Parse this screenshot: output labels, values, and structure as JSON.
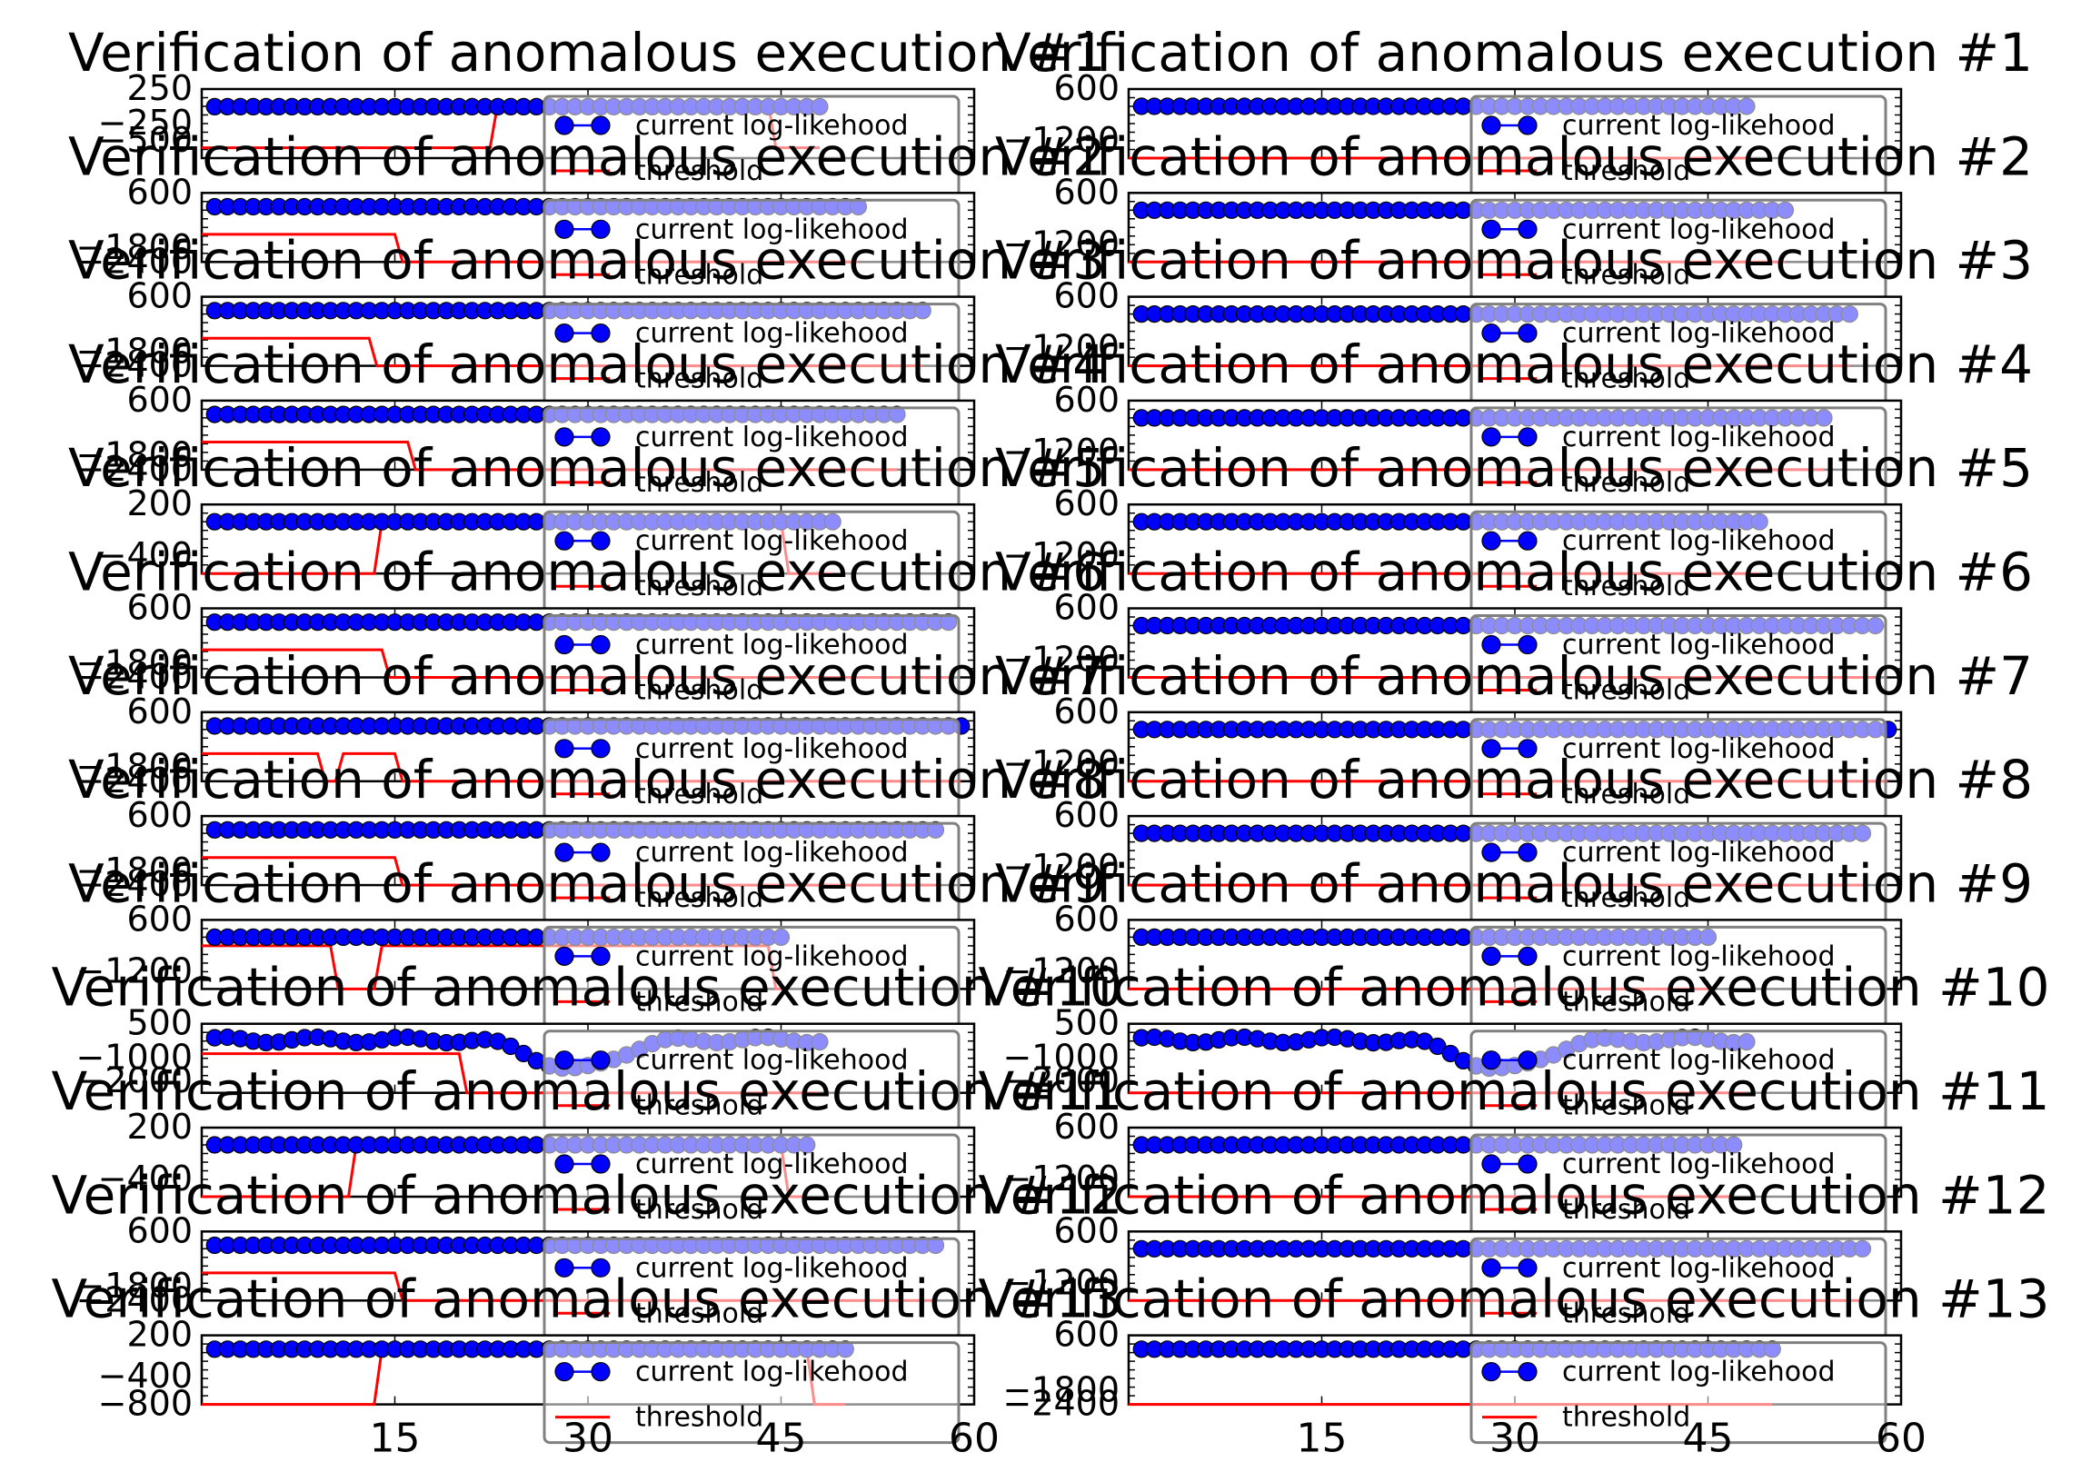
{
  "figure": {
    "legend_items": [
      "current log-likehood",
      "threshold"
    ],
    "x_ticks": [
      15,
      30,
      45,
      60
    ],
    "x_range": [
      0,
      60
    ],
    "legend_placement": "lower-right, overlapping",
    "colors": {
      "log_likelihood": "#0000ff",
      "threshold": "#ff0000",
      "axes": "#000000"
    }
  },
  "chart_data": [
    {
      "title": "Verification of anomalous execution #1",
      "type": "line",
      "xlim": [
        0,
        60
      ],
      "ylim": [
        -750,
        250
      ],
      "yticks": [
        250,
        -250,
        -500
      ],
      "n_points": 48,
      "loglik": -5,
      "threshold": {
        "base": -600,
        "high": 45,
        "segments": [
          [
            23,
            44
          ]
        ]
      }
    },
    {
      "title": "Verification of anomalous execution #1",
      "type": "line",
      "xlim": [
        0,
        60
      ],
      "ylim": [
        -1800,
        600
      ],
      "yticks": [
        600,
        -1200
      ],
      "n_points": 48,
      "loglik": 0,
      "threshold": {
        "base": -1800
      }
    },
    {
      "title": "Verification of anomalous execution #2",
      "type": "line",
      "xlim": [
        0,
        60
      ],
      "ylim": [
        -2400,
        600
      ],
      "yticks": [
        600,
        -1800,
        -2400
      ],
      "n_points": 51,
      "loglik": 0,
      "threshold": {
        "base": -2400,
        "high": -1200,
        "segments": [
          [
            0,
            15
          ]
        ]
      }
    },
    {
      "title": "Verification of anomalous execution #2",
      "type": "line",
      "xlim": [
        0,
        60
      ],
      "ylim": [
        -1800,
        600
      ],
      "yticks": [
        600,
        -1200
      ],
      "n_points": 51,
      "loglik": 0,
      "threshold": {
        "base": -1800
      }
    },
    {
      "title": "Verification of anomalous execution #3",
      "type": "line",
      "xlim": [
        0,
        60
      ],
      "ylim": [
        -2400,
        600
      ],
      "yticks": [
        600,
        -1800,
        -2400
      ],
      "n_points": 56,
      "loglik": 0,
      "threshold": {
        "base": -2400,
        "high": -1200,
        "segments": [
          [
            0,
            13
          ]
        ]
      }
    },
    {
      "title": "Verification of anomalous execution #3",
      "type": "line",
      "xlim": [
        0,
        60
      ],
      "ylim": [
        -1800,
        600
      ],
      "yticks": [
        600,
        -1200
      ],
      "n_points": 56,
      "loglik": 0,
      "threshold": {
        "base": -1800
      }
    },
    {
      "title": "Verification of anomalous execution #4",
      "type": "line",
      "xlim": [
        0,
        60
      ],
      "ylim": [
        -2400,
        600
      ],
      "yticks": [
        600,
        -1800,
        -2400
      ],
      "n_points": 54,
      "loglik": 0,
      "threshold": {
        "base": -2400,
        "high": -1200,
        "segments": [
          [
            0,
            16
          ]
        ]
      }
    },
    {
      "title": "Verification of anomalous execution #4",
      "type": "line",
      "xlim": [
        0,
        60
      ],
      "ylim": [
        -1800,
        600
      ],
      "yticks": [
        600,
        -1200
      ],
      "n_points": 54,
      "loglik": 0,
      "threshold": {
        "base": -1800
      }
    },
    {
      "title": "Verification of anomalous execution #5",
      "type": "line",
      "xlim": [
        0,
        60
      ],
      "ylim": [
        -600,
        200
      ],
      "yticks": [
        200,
        -400
      ],
      "n_points": 49,
      "loglik": 0,
      "threshold": {
        "base": -600,
        "high": 0,
        "segments": [
          [
            14,
            45
          ]
        ]
      }
    },
    {
      "title": "Verification of anomalous execution #5",
      "type": "line",
      "xlim": [
        0,
        60
      ],
      "ylim": [
        -1800,
        600
      ],
      "yticks": [
        600,
        -1200
      ],
      "n_points": 49,
      "loglik": 0,
      "threshold": {
        "base": -1800
      }
    },
    {
      "title": "Verification of anomalous execution #6",
      "type": "line",
      "xlim": [
        0,
        60
      ],
      "ylim": [
        -2400,
        600
      ],
      "yticks": [
        600,
        -1800,
        -2400
      ],
      "n_points": 58,
      "loglik": 0,
      "threshold": {
        "base": -2400,
        "high": -1200,
        "segments": [
          [
            0,
            14
          ]
        ]
      }
    },
    {
      "title": "Verification of anomalous execution #6",
      "type": "line",
      "xlim": [
        0,
        60
      ],
      "ylim": [
        -1800,
        600
      ],
      "yticks": [
        600,
        -1200
      ],
      "n_points": 58,
      "loglik": 0,
      "threshold": {
        "base": -1800
      }
    },
    {
      "title": "Verification of anomalous execution #7",
      "type": "line",
      "xlim": [
        0,
        60
      ],
      "ylim": [
        -2400,
        600
      ],
      "yticks": [
        600,
        -1800,
        -2400
      ],
      "n_points": 59,
      "loglik": 0,
      "threshold": {
        "base": -2400,
        "high": -1200,
        "segments": [
          [
            0,
            9
          ],
          [
            11,
            15
          ]
        ]
      }
    },
    {
      "title": "Verification of anomalous execution #7",
      "type": "line",
      "xlim": [
        0,
        60
      ],
      "ylim": [
        -1800,
        600
      ],
      "yticks": [
        600,
        -1200
      ],
      "n_points": 59,
      "loglik": 0,
      "threshold": {
        "base": -1800
      }
    },
    {
      "title": "Verification of anomalous execution #8",
      "type": "line",
      "xlim": [
        0,
        60
      ],
      "ylim": [
        -2400,
        600
      ],
      "yticks": [
        600,
        -1800,
        -2400
      ],
      "n_points": 57,
      "loglik": 0,
      "threshold": {
        "base": -2400,
        "high": -1200,
        "segments": [
          [
            0,
            15
          ]
        ]
      }
    },
    {
      "title": "Verification of anomalous execution #8",
      "type": "line",
      "xlim": [
        0,
        60
      ],
      "ylim": [
        -1800,
        600
      ],
      "yticks": [
        600,
        -1200
      ],
      "n_points": 57,
      "loglik": 0,
      "threshold": {
        "base": -1800
      }
    },
    {
      "title": "Verification of anomalous execution #9",
      "type": "line",
      "xlim": [
        0,
        60
      ],
      "ylim": [
        -1800,
        600
      ],
      "yticks": [
        600,
        -1200
      ],
      "n_points": 45,
      "loglik": 0,
      "threshold": {
        "base": -1800,
        "high": -300,
        "segments": [
          [
            0,
            10
          ],
          [
            14,
            44
          ]
        ]
      }
    },
    {
      "title": "Verification of anomalous execution #9",
      "type": "line",
      "xlim": [
        0,
        60
      ],
      "ylim": [
        -1800,
        600
      ],
      "yticks": [
        600,
        -1200
      ],
      "n_points": 45,
      "loglik": 0,
      "threshold": {
        "base": -1800
      }
    },
    {
      "title": "Verification of anomalous execution #10",
      "type": "line",
      "xlim": [
        0,
        60
      ],
      "ylim": [
        -2500,
        500
      ],
      "yticks": [
        500,
        -1000,
        -2000
      ],
      "n_points": 48,
      "loglik": -200,
      "dip": {
        "center": 29,
        "depth": -1300
      },
      "threshold": {
        "base": -2500,
        "high": -800,
        "segments": [
          [
            0,
            20
          ]
        ]
      }
    },
    {
      "title": "Verification of anomalous execution #10",
      "type": "line",
      "xlim": [
        0,
        60
      ],
      "ylim": [
        -2500,
        500
      ],
      "yticks": [
        500,
        -1000,
        -2000
      ],
      "n_points": 48,
      "loglik": -200,
      "dip": {
        "center": 29,
        "depth": -1300
      },
      "threshold": {
        "base": -2500
      }
    },
    {
      "title": "Verification of anomalous execution #11",
      "type": "line",
      "xlim": [
        0,
        60
      ],
      "ylim": [
        -600,
        200
      ],
      "yticks": [
        200,
        -400
      ],
      "n_points": 47,
      "loglik": 0,
      "threshold": {
        "base": -600,
        "high": 0,
        "segments": [
          [
            12,
            45
          ]
        ]
      }
    },
    {
      "title": "Verification of anomalous execution #11",
      "type": "line",
      "xlim": [
        0,
        60
      ],
      "ylim": [
        -1800,
        600
      ],
      "yticks": [
        600,
        -1200
      ],
      "n_points": 47,
      "loglik": 0,
      "threshold": {
        "base": -1800
      }
    },
    {
      "title": "Verification of anomalous execution #12",
      "type": "line",
      "xlim": [
        0,
        60
      ],
      "ylim": [
        -2400,
        600
      ],
      "yticks": [
        600,
        -1800,
        -2400
      ],
      "n_points": 57,
      "loglik": 0,
      "threshold": {
        "base": -2400,
        "high": -1200,
        "segments": [
          [
            0,
            15
          ]
        ]
      }
    },
    {
      "title": "Verification of anomalous execution #12",
      "type": "line",
      "xlim": [
        0,
        60
      ],
      "ylim": [
        -1800,
        600
      ],
      "yticks": [
        600,
        -1200
      ],
      "n_points": 57,
      "loglik": 0,
      "threshold": {
        "base": -1800
      }
    },
    {
      "title": "Verification of anomalous execution #13",
      "type": "line",
      "xlim": [
        0,
        60
      ],
      "ylim": [
        -800,
        200
      ],
      "yticks": [
        200,
        -400,
        -800
      ],
      "n_points": 50,
      "loglik": 0,
      "threshold": {
        "base": -800,
        "high": 0,
        "segments": [
          [
            14,
            47
          ]
        ]
      }
    },
    {
      "title": "Verification of anomalous execution #13",
      "type": "line",
      "xlim": [
        0,
        60
      ],
      "ylim": [
        -2400,
        600
      ],
      "yticks": [
        600,
        -1800,
        -2400
      ],
      "n_points": 50,
      "loglik": 0,
      "threshold": {
        "base": -2400
      }
    }
  ]
}
